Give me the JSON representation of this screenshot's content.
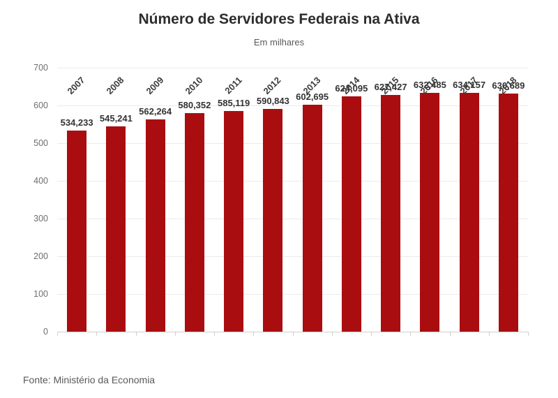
{
  "header": {
    "title": "Número de Servidores Federais na Ativa",
    "subtitle": "Em milhares"
  },
  "chart_data": {
    "type": "bar",
    "title": "Número de Servidores Federais na Ativa",
    "subtitle": "Em milhares",
    "categories": [
      "2007",
      "2008",
      "2009",
      "2010",
      "2011",
      "2012",
      "2013",
      "2014",
      "2015",
      "2016",
      "2017",
      "2018"
    ],
    "values": [
      534233,
      545241,
      562264,
      580352,
      585119,
      590843,
      602695,
      624095,
      627427,
      632485,
      634157,
      630689
    ],
    "value_labels": [
      "534,233",
      "545,241",
      "562,264",
      "580,352",
      "585,119",
      "590,843",
      "602,695",
      "624,095",
      "627,427",
      "632,485",
      "634,157",
      "630,689"
    ],
    "xlabel": "",
    "ylabel": "",
    "y_unit": "thousands",
    "ylim": [
      0,
      700
    ],
    "yticks": [
      0,
      100,
      200,
      300,
      400,
      500,
      600,
      700
    ],
    "grid": true,
    "legend_position": "none"
  },
  "footer": {
    "source": "Fonte: Ministério da Economia"
  },
  "colors": {
    "bar": "#AA0D10",
    "grid": "#EBEBEB",
    "axis": "#CFCFCF",
    "title_text": "#2D2D2D",
    "subtitle_text": "#58595B",
    "value_label_text": "#333333",
    "y_label_text": "#6E6E6E",
    "category_label_text": "#3C3C3C",
    "background": "#FFFFFF"
  }
}
